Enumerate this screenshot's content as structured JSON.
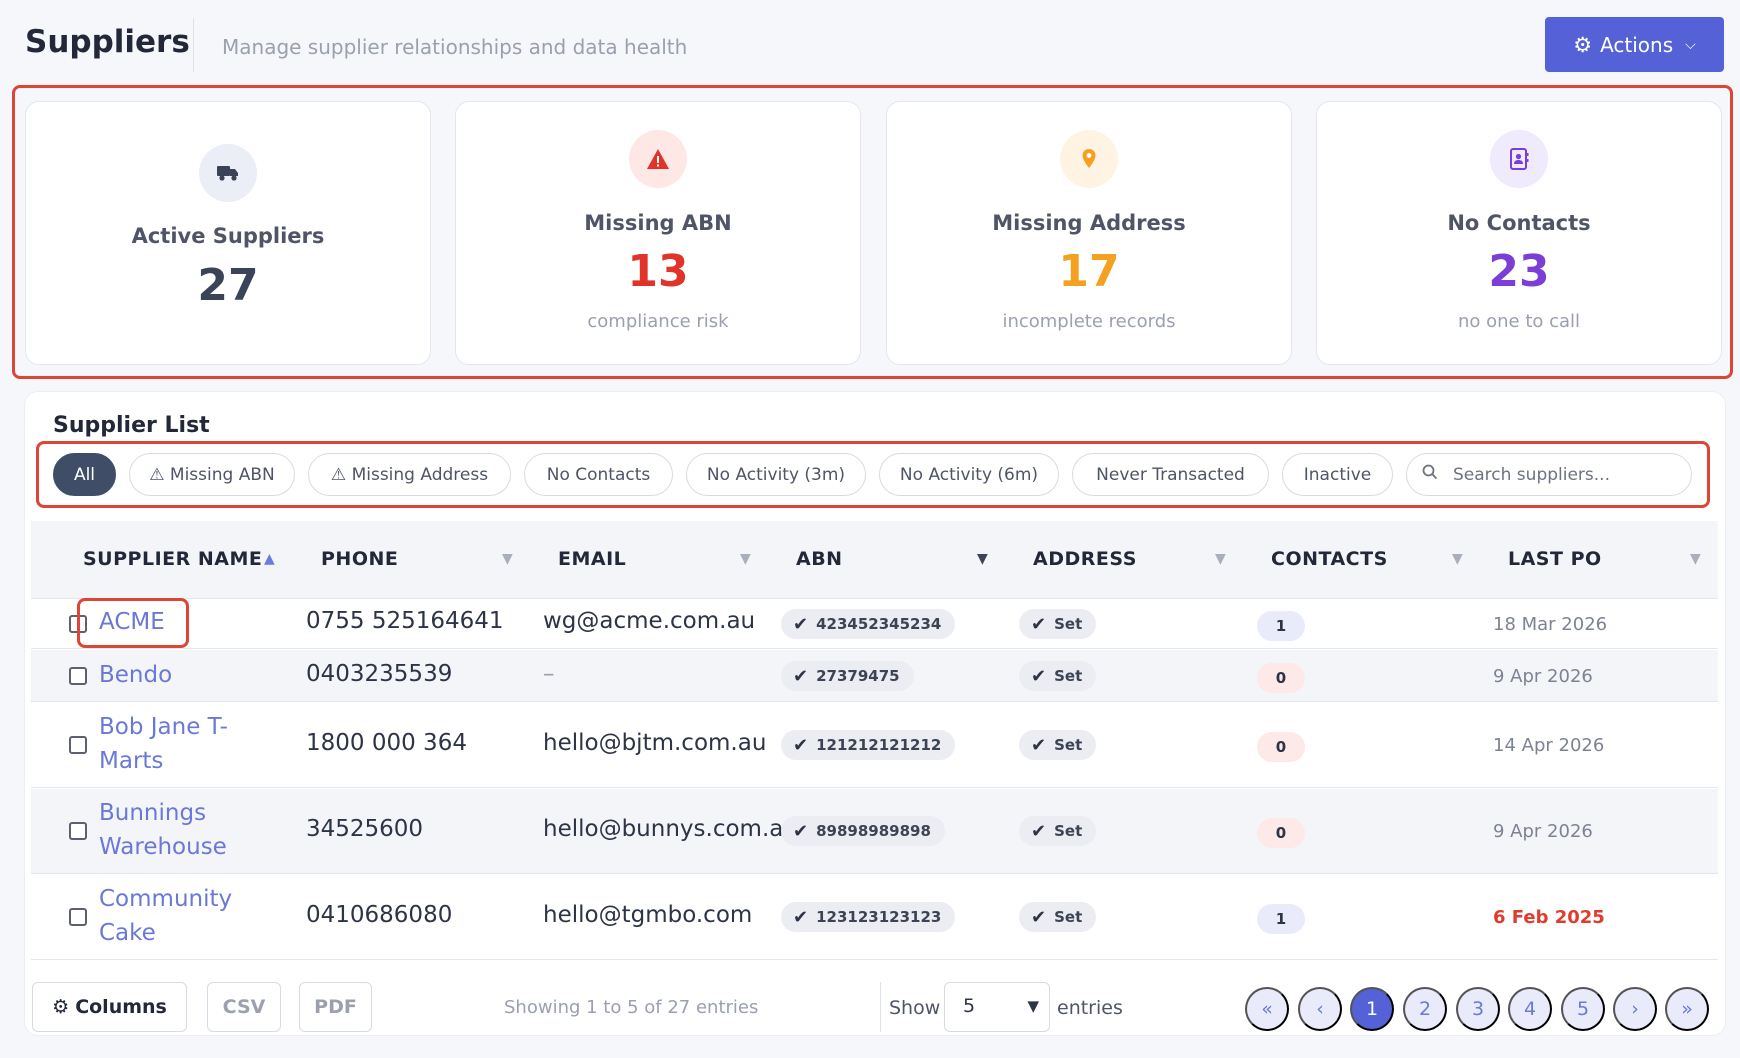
{
  "header": {
    "title": "Suppliers",
    "subtitle": "Manage supplier relationships and data health",
    "actions_label": "Actions"
  },
  "stats": [
    {
      "label": "Active Suppliers",
      "value": "27",
      "caption": "",
      "icon": "truck-icon",
      "color": "#3a4357",
      "icon_bg": "#eceef7"
    },
    {
      "label": "Missing ABN",
      "value": "13",
      "caption": "compliance risk",
      "icon": "warning-icon",
      "color": "#e0332a",
      "icon_bg": "#fde8e6"
    },
    {
      "label": "Missing Address",
      "value": "17",
      "caption": "incomplete records",
      "icon": "map-pin-icon",
      "color": "#f4a020",
      "icon_bg": "#fff4e3"
    },
    {
      "label": "No Contacts",
      "value": "23",
      "caption": "no one to call",
      "icon": "contact-book-icon",
      "color": "#7b3fd8",
      "icon_bg": "#efeafc"
    }
  ],
  "list": {
    "title": "Supplier List",
    "filters": [
      "All",
      "⚠ Missing ABN",
      "⚠ Missing Address",
      "No Contacts",
      "No Activity (3m)",
      "No Activity (6m)",
      "Never Transacted",
      "Inactive"
    ],
    "active_filter": "All",
    "search_placeholder": "Search suppliers..."
  },
  "table": {
    "columns": [
      "SUPPLIER NAME",
      "PHONE",
      "EMAIL",
      "ABN",
      "ADDRESS",
      "CONTACTS",
      "LAST PO"
    ],
    "rows": [
      {
        "name": "ACME",
        "phone": "0755 525164641",
        "email": "wg@acme.com.au",
        "abn": "423452345234",
        "address": "Set",
        "contacts": "1",
        "last_po": "18 Mar 2026"
      },
      {
        "name": "Bendo",
        "phone": "0403235539",
        "email": "–",
        "abn": "27379475",
        "address": "Set",
        "contacts": "0",
        "last_po": "9 Apr 2026"
      },
      {
        "name": "Bob Jane T-Marts",
        "phone": "1800 000 364",
        "email": "hello@bjtm.com.au",
        "abn": "121212121212",
        "address": "Set",
        "contacts": "0",
        "last_po": "14 Apr 2026"
      },
      {
        "name": "Bunnings Warehouse",
        "phone": "34525600",
        "email": "hello@bunnys.com.a",
        "abn": "89898989898",
        "address": "Set",
        "contacts": "0",
        "last_po": "9 Apr 2026"
      },
      {
        "name": "Community Cake",
        "phone": "0410686080",
        "email": "hello@tgmbo.com",
        "abn": "123123123123",
        "address": "Set",
        "contacts": "1",
        "last_po": "6 Feb 2025"
      }
    ]
  },
  "footer": {
    "columns_label": "Columns",
    "csv_label": "CSV",
    "pdf_label": "PDF",
    "showing_text": "Showing 1 to 5 of 27 entries",
    "show_label": "Show",
    "page_size": "5",
    "entries_label": "entries",
    "pages": [
      "1",
      "2",
      "3",
      "4",
      "5"
    ],
    "current_page": "1",
    "first_label": "«",
    "prev_label": "‹",
    "next_label": "›",
    "last_label": "»"
  },
  "colors": {
    "accent": "#5561d6",
    "link": "#6a78d6",
    "highlight": "#dd4535",
    "overdue": "#e03b2f"
  }
}
